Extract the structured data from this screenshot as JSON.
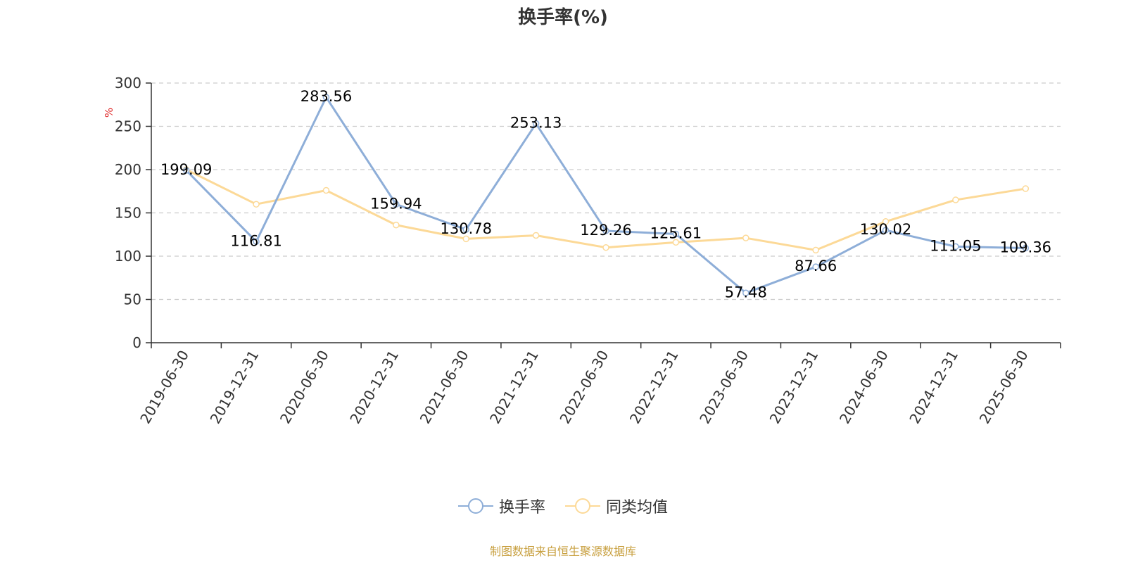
{
  "title": "换手率(%)",
  "source_note": "制图数据来自恒生聚源数据库",
  "colors": {
    "turnover": "#8eaed8",
    "peer_avg": "#fcd997",
    "ylabel": "#e03030",
    "source": "#c8a040"
  },
  "legend": [
    {
      "name": "换手率",
      "icon": "circle-line-icon"
    },
    {
      "name": "同类均值",
      "icon": "circle-line-icon"
    }
  ],
  "chart_data": {
    "type": "line",
    "title": "换手率(%)",
    "xlabel": "",
    "ylabel": "%",
    "ylim": [
      0,
      300
    ],
    "yticks": [
      0,
      50,
      100,
      150,
      200,
      250,
      300
    ],
    "grid": true,
    "legend_position": "bottom",
    "categories": [
      "2019-06-30",
      "2019-12-31",
      "2020-06-30",
      "2020-12-31",
      "2021-06-30",
      "2021-12-31",
      "2022-06-30",
      "2022-12-31",
      "2023-06-30",
      "2023-12-31",
      "2024-06-30",
      "2024-12-31",
      "2025-06-30"
    ],
    "series": [
      {
        "name": "换手率",
        "values": [
          199.09,
          116.81,
          283.56,
          159.94,
          130.78,
          253.13,
          129.26,
          125.61,
          57.48,
          87.66,
          130.02,
          111.05,
          109.36
        ],
        "labels": [
          "199.09",
          "116.81",
          "283.56",
          "159.94",
          "130.78",
          "253.13",
          "129.26",
          "125.61",
          "57.48",
          "87.66",
          "130.02",
          "111.05",
          "109.36"
        ]
      },
      {
        "name": "同类均值",
        "values": [
          200,
          160,
          176,
          136,
          120,
          124,
          110,
          116,
          121,
          107,
          140,
          165,
          178
        ]
      }
    ]
  }
}
